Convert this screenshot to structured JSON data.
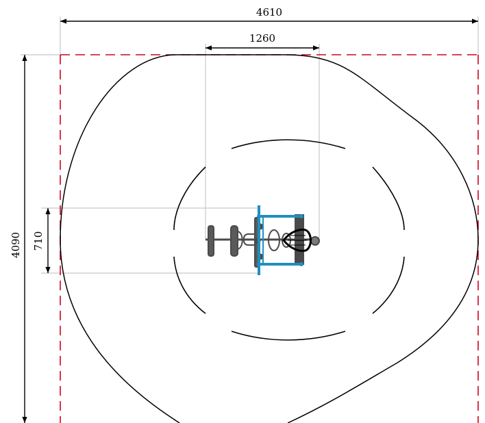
{
  "dimensions": {
    "overall_width": "4610",
    "equipment_width": "1260",
    "overall_height": "4090",
    "equipment_depth": "710"
  },
  "colors": {
    "safety_boundary": "#d0021b",
    "equipment_frame": "#1e8fc0",
    "equipment_dark": "#4a4a4a",
    "extension_line": "#c8c8c8",
    "line": "#000000"
  }
}
